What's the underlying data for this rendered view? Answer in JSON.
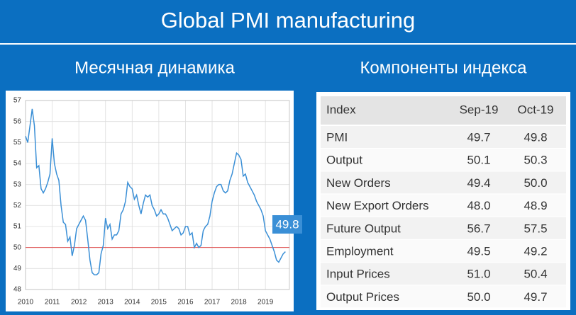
{
  "header": {
    "title": "Global PMI manufacturing",
    "left_title": "Месячная динамика",
    "right_title": "Компоненты индекса"
  },
  "chart_data": {
    "type": "line",
    "x": [
      2010,
      2010.083,
      2010.167,
      2010.25,
      2010.333,
      2010.417,
      2010.5,
      2010.583,
      2010.667,
      2010.75,
      2010.833,
      2010.917,
      2011,
      2011.083,
      2011.167,
      2011.25,
      2011.333,
      2011.417,
      2011.5,
      2011.583,
      2011.667,
      2011.75,
      2011.833,
      2011.917,
      2012,
      2012.083,
      2012.167,
      2012.25,
      2012.333,
      2012.417,
      2012.5,
      2012.583,
      2012.667,
      2012.75,
      2012.833,
      2012.917,
      2013,
      2013.083,
      2013.167,
      2013.25,
      2013.333,
      2013.417,
      2013.5,
      2013.583,
      2013.667,
      2013.75,
      2013.833,
      2013.917,
      2014,
      2014.083,
      2014.167,
      2014.25,
      2014.333,
      2014.417,
      2014.5,
      2014.583,
      2014.667,
      2014.75,
      2014.833,
      2014.917,
      2015,
      2015.083,
      2015.167,
      2015.25,
      2015.333,
      2015.417,
      2015.5,
      2015.583,
      2015.667,
      2015.75,
      2015.833,
      2015.917,
      2016,
      2016.083,
      2016.167,
      2016.25,
      2016.333,
      2016.417,
      2016.5,
      2016.583,
      2016.667,
      2016.75,
      2016.833,
      2016.917,
      2017,
      2017.083,
      2017.167,
      2017.25,
      2017.333,
      2017.417,
      2017.5,
      2017.583,
      2017.667,
      2017.75,
      2017.833,
      2017.917,
      2018,
      2018.083,
      2018.167,
      2018.25,
      2018.333,
      2018.417,
      2018.5,
      2018.583,
      2018.667,
      2018.75,
      2018.833,
      2018.917,
      2019,
      2019.083,
      2019.167,
      2019.25,
      2019.333,
      2019.417,
      2019.5,
      2019.583,
      2019.667,
      2019.75
    ],
    "series": [
      {
        "color": "#3a8fd6",
        "values": [
          55.3,
          55.0,
          55.8,
          56.6,
          55.8,
          53.8,
          53.9,
          52.8,
          52.6,
          52.8,
          53.1,
          53.5,
          55.2,
          54.0,
          53.5,
          53.2,
          52.0,
          51.2,
          51.1,
          50.3,
          50.5,
          49.6,
          50.1,
          50.9,
          51.1,
          51.3,
          51.5,
          51.3,
          50.4,
          49.4,
          48.8,
          48.7,
          48.7,
          48.8,
          49.7,
          50.1,
          51.4,
          50.9,
          51.1,
          50.4,
          50.6,
          50.6,
          50.8,
          51.6,
          51.8,
          52.2,
          53.1,
          52.9,
          52.8,
          52.3,
          52.5,
          52.0,
          51.6,
          52.1,
          52.5,
          52.4,
          52.5,
          52.0,
          51.8,
          51.5,
          51.6,
          51.8,
          51.6,
          51.6,
          51.4,
          51.1,
          50.8,
          50.9,
          51.0,
          50.9,
          50.6,
          50.7,
          51.0,
          51.0,
          50.6,
          50.7,
          50.0,
          50.2,
          50.0,
          50.1,
          50.8,
          51.0,
          51.1,
          51.5,
          52.2,
          52.6,
          52.9,
          53.0,
          53.0,
          52.7,
          52.6,
          52.7,
          53.2,
          53.5,
          54.0,
          54.5,
          54.4,
          54.2,
          53.4,
          53.5,
          53.1,
          52.9,
          52.7,
          52.5,
          52.2,
          52.0,
          51.8,
          51.5,
          50.8,
          50.6,
          50.4,
          50.1,
          49.8,
          49.4,
          49.3,
          49.5,
          49.7,
          49.8
        ]
      }
    ],
    "xlim": [
      2010,
      2019.9
    ],
    "xticks": [
      2010,
      2011,
      2012,
      2013,
      2014,
      2015,
      2016,
      2017,
      2018,
      2019
    ],
    "ylim": [
      48,
      57
    ],
    "yticks": [
      48,
      49,
      50,
      51,
      52,
      53,
      54,
      55,
      56,
      57
    ],
    "grid": true,
    "reference_line": 50,
    "reference_color": "#e05050",
    "annotation": "49.8"
  },
  "table": {
    "header": [
      "Index",
      "Sep-19",
      "Oct-19"
    ],
    "rows": [
      [
        "PMI",
        "49.7",
        "49.8"
      ],
      [
        "Output",
        "50.1",
        "50.3"
      ],
      [
        "New Orders",
        "49.4",
        "50.0"
      ],
      [
        "New Export Orders",
        "48.0",
        "48.9"
      ],
      [
        "Future Output",
        "56.7",
        "57.5"
      ],
      [
        "Employment",
        "49.5",
        "49.2"
      ],
      [
        "Input Prices",
        "51.0",
        "50.4"
      ],
      [
        "Output Prices",
        "50.0",
        "49.7"
      ]
    ]
  }
}
